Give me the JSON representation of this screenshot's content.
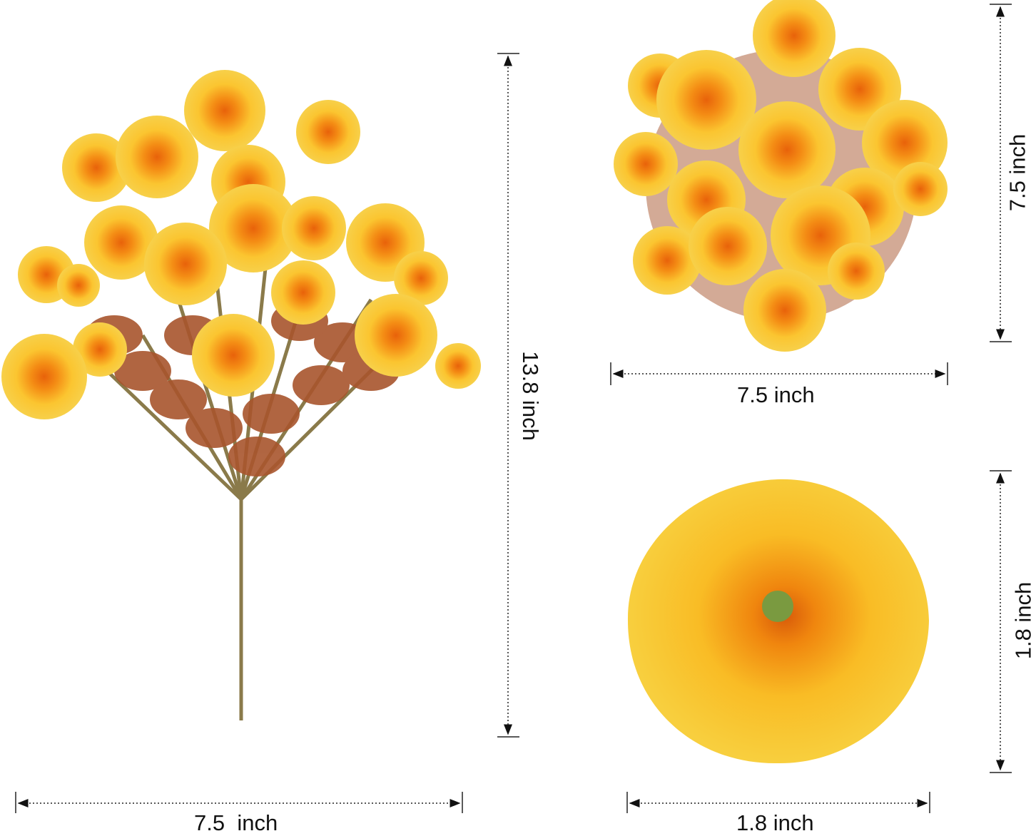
{
  "dimensions": {
    "bouquet_width": "7.5  inch",
    "bouquet_height": "13.8 inch",
    "top_view_width": "7.5 inch",
    "top_view_height": "7.5 inch",
    "flower_width": "1.8 inch",
    "flower_height": "1.8 inch"
  },
  "colors": {
    "petal": "#f9c52a",
    "center": "#f07a10",
    "leaf": "#a8552d",
    "stem": "#8a7a4a",
    "dimension_line": "#222222"
  }
}
